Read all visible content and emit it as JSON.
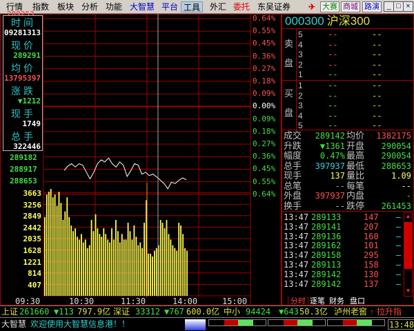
{
  "menu": [
    "行情",
    "指数",
    "板块",
    "分析",
    "功能",
    "大智慧",
    "平台",
    "工具",
    "外汇",
    "委托",
    "东吴证券"
  ],
  "menu_active": "工具",
  "toolbar_buttons": [
    "大赛",
    "商城",
    "路演"
  ],
  "window_controls": {
    "minimize": "minimize-icon",
    "maximize": "maximize-icon",
    "close": "close-icon"
  },
  "chart": {
    "hidden_top_label": "289253",
    "pct_labels_up": [
      "0.64%",
      "0.55%",
      "0.45%",
      "0.36%",
      "0.27%",
      "0.18%",
      "0.09%"
    ],
    "pct_zero": "0.00%",
    "pct_labels_down": [
      "0.09%",
      "0.18%",
      "0.27%",
      "0.36%",
      "0.45%",
      "0.55%",
      "0.64%"
    ],
    "price_labels_low": [
      "289182",
      "288917",
      "288653"
    ],
    "volume_labels": [
      "3663",
      "3256",
      "2849",
      "2442",
      "2035",
      "1628",
      "1221",
      "814",
      "407"
    ],
    "time_labels": [
      "09:30",
      "10:30",
      "11:30",
      "14:00",
      "15:00"
    ],
    "colors": {
      "up": "#ff5050",
      "down": "#40e040",
      "grid": "#a00000",
      "volume": "#ffff50",
      "price_line": "#ffffff"
    },
    "price_series": [
      289160,
      289250,
      289300,
      289230,
      289300,
      289270,
      289120,
      288980,
      289120,
      289300,
      289380,
      289340,
      289420,
      289300,
      289230,
      289340,
      289270,
      289030,
      289150,
      289300,
      289270,
      289080,
      289120,
      289050,
      289080,
      289020,
      288950,
      288880,
      288770,
      288910,
      288880,
      288950,
      289000,
      288960
    ],
    "volume_series": [
      2800,
      3600,
      3700,
      3800,
      3500,
      3600,
      3200,
      3700,
      3300,
      2700,
      3000,
      3500,
      2800,
      2500,
      2300,
      2400,
      2100,
      2000,
      2200,
      1900,
      2000,
      1700,
      1800,
      2700,
      2300,
      2900,
      2400,
      2200,
      2100,
      2400,
      2200,
      2000,
      1900,
      2400,
      2000,
      2700,
      2300,
      1900,
      2200,
      2000,
      2000,
      2600,
      2300,
      2000,
      2500,
      2100,
      1800,
      1900,
      1700,
      2600,
      3400,
      1500,
      1500,
      1400,
      1600,
      1700,
      1800,
      2700,
      2600,
      2400,
      2700,
      2200,
      2000,
      1800,
      1700,
      1600,
      2600,
      2500,
      2200,
      1700,
      1600
    ]
  },
  "infobox": [
    {
      "label": "时间",
      "value": "09281313",
      "color": "#ffffff"
    },
    {
      "label": "现价",
      "value": "289291",
      "color": "#40e040"
    },
    {
      "label": "均价",
      "value": "13795397",
      "color": "#ff5050"
    },
    {
      "label": "涨跌",
      "value": "▼1212",
      "color": "#40e040"
    },
    {
      "label": "现手",
      "value": "1749",
      "color": "#ffffff"
    },
    {
      "label": "总手",
      "value": "322446",
      "color": "#ffffff"
    }
  ],
  "quote": {
    "code": "000300",
    "name": "沪深300",
    "sell_label": [
      "卖",
      "盘"
    ],
    "buy_label": [
      "买",
      "盘"
    ],
    "levels": [
      "5",
      "4",
      "3",
      "2",
      "1"
    ],
    "buy_levels": [
      "1",
      "2",
      "3",
      "4",
      "5"
    ],
    "empty": "--",
    "stats": [
      {
        "l1": "成交",
        "v1": "289142",
        "c1": "#40e040",
        "l2": "均价",
        "v2": "1382175",
        "c2": "#ff5050"
      },
      {
        "l1": "升跌",
        "v1": "▼1361",
        "c1": "#40e040",
        "l2": "开盘",
        "v2": "290054",
        "c2": "#40e040"
      },
      {
        "l1": "幅度",
        "v1": "0.47%",
        "c1": "#40e040",
        "l2": "最高",
        "v2": "290054",
        "c2": "#40e040"
      },
      {
        "l1": "总手",
        "v1": "397937",
        "c1": "#30d0e0",
        "l2": "最低",
        "v2": "288653",
        "c2": "#40e040"
      },
      {
        "l1": "现手",
        "v1": "137",
        "c1": "#ffff50",
        "l2": "量比",
        "v2": "1.09",
        "c2": "#ffff50"
      },
      {
        "l1": "总笔",
        "v1": "--",
        "c1": "#30d0e0",
        "l2": "每笔",
        "v2": "--",
        "c2": "#ffff50"
      },
      {
        "l1": "外盘",
        "v1": "397937",
        "c1": "#ff5050",
        "l2": "内盘",
        "v2": "-",
        "c2": "#40e040"
      },
      {
        "l1": "换手",
        "v1": "--",
        "c1": "#c0c0c0",
        "l2": "跌停",
        "v2": "261453",
        "c2": "#40e040"
      }
    ],
    "ticks": [
      {
        "time": "13:47",
        "price": "289133",
        "vol": "147"
      },
      {
        "time": "13:47",
        "price": "289141",
        "vol": "207"
      },
      {
        "time": "13:47",
        "price": "289136",
        "vol": "160"
      },
      {
        "time": "13:47",
        "price": "289162",
        "vol": "101"
      },
      {
        "time": "13:47",
        "price": "289158",
        "vol": "295"
      },
      {
        "time": "13:47",
        "price": "289113",
        "vol": "158"
      },
      {
        "time": "13:47",
        "price": "289142",
        "vol": "130"
      },
      {
        "time": "13:47",
        "price": "289142",
        "vol": "137"
      }
    ],
    "tabs": [
      "分时",
      "逐笔",
      "财务",
      "盘口"
    ]
  },
  "status": {
    "sh_label": "上证",
    "sh_value": "261660",
    "sh_change": "▼113",
    "sh_amount": "797.9亿",
    "sz_label": "深证",
    "sz_value": "33312",
    "sz_change": "▼767",
    "sz_amount": "600.0亿",
    "zx_label": "中小",
    "zx_value": "94424",
    "zx_change": "▼643",
    "zx_amount": "50.3亿",
    "stock": "泸州老窖",
    "stock_arrow": "↑",
    "stock_note": "拉升指",
    "brand": "大智慧",
    "message": "欢迎使用大智慧信息港！！",
    "clock": "13:48"
  }
}
